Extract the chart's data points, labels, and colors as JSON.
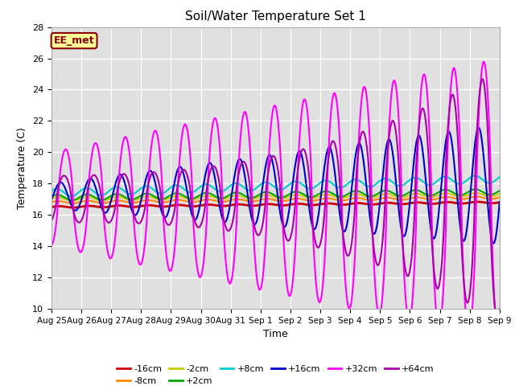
{
  "title": "Soil/Water Temperature Set 1",
  "xlabel": "Time",
  "ylabel": "Temperature (C)",
  "ylim": [
    10,
    28
  ],
  "xlim_days": [
    0,
    15
  ],
  "annotation": "EE_met",
  "background_color": "#ffffff",
  "plot_bg_color": "#e0e0e0",
  "grid_color": "#ffffff",
  "xtick_labels": [
    "Aug 25",
    "Aug 26",
    "Aug 27",
    "Aug 28",
    "Aug 29",
    "Aug 30",
    "Aug 31",
    "Sep 1",
    "Sep 2",
    "Sep 3",
    "Sep 4",
    "Sep 5",
    "Sep 6",
    "Sep 7",
    "Sep 8",
    "Sep 9"
  ],
  "xtick_positions": [
    0,
    1,
    2,
    3,
    4,
    5,
    6,
    7,
    8,
    9,
    10,
    11,
    12,
    13,
    14,
    15
  ],
  "ytick_labels": [
    "10",
    "12",
    "14",
    "16",
    "18",
    "20",
    "22",
    "24",
    "26",
    "28"
  ],
  "ytick_positions": [
    10,
    12,
    14,
    16,
    18,
    20,
    22,
    24,
    26,
    28
  ],
  "series": [
    {
      "label": "-16cm",
      "color": "#cc0000",
      "linewidth": 2.0
    },
    {
      "label": "-8cm",
      "color": "#ff8800",
      "linewidth": 1.5
    },
    {
      "label": "-2cm",
      "color": "#cccc00",
      "linewidth": 1.5
    },
    {
      "label": "+2cm",
      "color": "#00aa00",
      "linewidth": 1.5
    },
    {
      "label": "+8cm",
      "color": "#00cccc",
      "linewidth": 1.5
    },
    {
      "label": "+16cm",
      "color": "#0000cc",
      "linewidth": 1.5
    },
    {
      "label": "+32cm",
      "color": "#ff00ff",
      "linewidth": 1.5
    },
    {
      "label": "+64cm",
      "color": "#aa00aa",
      "linewidth": 1.5
    }
  ]
}
